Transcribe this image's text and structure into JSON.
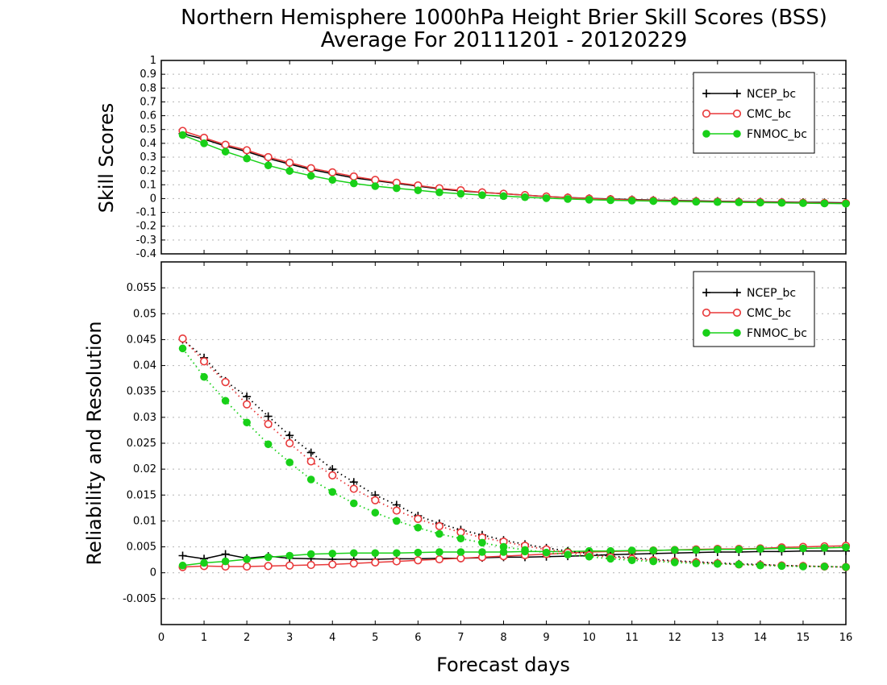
{
  "title_line1": "Northern Hemisphere 1000hPa Height Brier Skill Scores (BSS)",
  "title_line2": "Average For 20111201 - 20120229",
  "colors": {
    "NCEP_bc": "#000000",
    "CMC_bc": "#e8393a",
    "FNMOC_bc": "#18d018",
    "grid": "#b4b4b4"
  },
  "chart_data": [
    {
      "type": "line",
      "ylabel": "Skill Scores",
      "xlabel": "Forecast days",
      "xlim": [
        0,
        16
      ],
      "ylim": [
        -0.4,
        1
      ],
      "grid": true,
      "legend_position": "top-right",
      "x_ticks": [
        "0",
        "1",
        "2",
        "3",
        "4",
        "5",
        "6",
        "7",
        "8",
        "9",
        "10",
        "11",
        "12",
        "13",
        "14",
        "15",
        "16"
      ],
      "y_ticks": [
        "-0.4",
        "-0.3",
        "-0.2",
        "-0.1",
        "0",
        "0.1",
        "0.2",
        "0.3",
        "0.4",
        "0.5",
        "0.6",
        "0.7",
        "0.8",
        "0.9",
        "1"
      ],
      "x": [
        0.5,
        1,
        1.5,
        2,
        2.5,
        3,
        3.5,
        4,
        4.5,
        5,
        5.5,
        6,
        6.5,
        7,
        7.5,
        8,
        8.5,
        9,
        9.5,
        10,
        10.5,
        11,
        11.5,
        12,
        12.5,
        13,
        13.5,
        14,
        14.5,
        15,
        15.5,
        16
      ],
      "series": [
        {
          "name": "NCEP_bc",
          "marker": "plus",
          "line": "solid",
          "values": [
            0.47,
            0.43,
            0.38,
            0.34,
            0.29,
            0.25,
            0.21,
            0.18,
            0.15,
            0.13,
            0.11,
            0.09,
            0.07,
            0.055,
            0.045,
            0.035,
            0.025,
            0.015,
            0.008,
            0.002,
            -0.003,
            -0.007,
            -0.011,
            -0.014,
            -0.017,
            -0.019,
            -0.021,
            -0.023,
            -0.025,
            -0.027,
            -0.028,
            -0.03
          ]
        },
        {
          "name": "CMC_bc",
          "marker": "open-circle",
          "line": "solid",
          "values": [
            0.49,
            0.44,
            0.39,
            0.35,
            0.3,
            0.26,
            0.22,
            0.19,
            0.16,
            0.135,
            0.115,
            0.095,
            0.075,
            0.06,
            0.045,
            0.035,
            0.025,
            0.015,
            0.007,
            0.0,
            -0.005,
            -0.01,
            -0.014,
            -0.017,
            -0.02,
            -0.022,
            -0.024,
            -0.026,
            -0.028,
            -0.03,
            -0.032,
            -0.034
          ]
        },
        {
          "name": "FNMOC_bc",
          "marker": "filled-circle",
          "line": "solid",
          "values": [
            0.46,
            0.4,
            0.34,
            0.29,
            0.24,
            0.2,
            0.165,
            0.135,
            0.11,
            0.09,
            0.075,
            0.06,
            0.045,
            0.035,
            0.025,
            0.018,
            0.01,
            0.003,
            -0.003,
            -0.008,
            -0.012,
            -0.015,
            -0.018,
            -0.021,
            -0.023,
            -0.025,
            -0.027,
            -0.029,
            -0.031,
            -0.033,
            -0.035,
            -0.037
          ]
        }
      ]
    },
    {
      "type": "line",
      "ylabel": "Reliability and Resolution",
      "xlabel": "Forecast days",
      "xlim": [
        0,
        16
      ],
      "ylim": [
        -0.01,
        0.06
      ],
      "grid": true,
      "legend_position": "top-right",
      "x_ticks": [
        "0",
        "1",
        "2",
        "3",
        "4",
        "5",
        "6",
        "7",
        "8",
        "9",
        "10",
        "11",
        "12",
        "13",
        "14",
        "15",
        "16"
      ],
      "y_ticks": [
        "-0.005",
        "0",
        "0.005",
        "0.01",
        "0.015",
        "0.02",
        "0.025",
        "0.03",
        "0.035",
        "0.04",
        "0.045",
        "0.05",
        "0.055"
      ],
      "x": [
        0.5,
        1,
        1.5,
        2,
        2.5,
        3,
        3.5,
        4,
        4.5,
        5,
        5.5,
        6,
        6.5,
        7,
        7.5,
        8,
        8.5,
        9,
        9.5,
        10,
        10.5,
        11,
        11.5,
        12,
        12.5,
        13,
        13.5,
        14,
        14.5,
        15,
        15.5,
        16
      ],
      "series": [
        {
          "name": "NCEP_bc",
          "metric": "reliability",
          "marker": "plus",
          "line": "solid",
          "values": [
            0.0033,
            0.0027,
            0.0036,
            0.0028,
            0.0032,
            0.0028,
            0.0027,
            0.0026,
            0.0026,
            0.0026,
            0.0027,
            0.0027,
            0.0028,
            0.0028,
            0.0029,
            0.003,
            0.003,
            0.0031,
            0.0032,
            0.0033,
            0.0035,
            0.0036,
            0.0037,
            0.0038,
            0.0039,
            0.004,
            0.004,
            0.0041,
            0.0041,
            0.0042,
            0.0042,
            0.0042
          ]
        },
        {
          "name": "CMC_bc",
          "metric": "reliability",
          "marker": "open-circle",
          "line": "solid",
          "values": [
            0.0011,
            0.0013,
            0.0012,
            0.0012,
            0.0013,
            0.0014,
            0.0015,
            0.0016,
            0.0018,
            0.002,
            0.0022,
            0.0024,
            0.0026,
            0.0028,
            0.003,
            0.0032,
            0.0034,
            0.0036,
            0.0038,
            0.004,
            0.0041,
            0.0042,
            0.0043,
            0.0044,
            0.0045,
            0.0046,
            0.0046,
            0.0047,
            0.0049,
            0.005,
            0.0051,
            0.0052
          ]
        },
        {
          "name": "FNMOC_bc",
          "metric": "reliability",
          "marker": "filled-circle",
          "line": "solid",
          "values": [
            0.0014,
            0.0019,
            0.0022,
            0.0026,
            0.003,
            0.0033,
            0.0036,
            0.0037,
            0.0038,
            0.0038,
            0.0038,
            0.0039,
            0.004,
            0.004,
            0.004,
            0.004,
            0.0041,
            0.0041,
            0.0041,
            0.0042,
            0.0042,
            0.0043,
            0.0043,
            0.0044,
            0.0044,
            0.0045,
            0.0045,
            0.0046,
            0.0047,
            0.0047,
            0.0048,
            0.0049
          ]
        },
        {
          "name": "NCEP_bc",
          "metric": "resolution",
          "marker": "plus",
          "line": "dotted",
          "values": [
            0.045,
            0.0415,
            0.037,
            0.034,
            0.0302,
            0.0265,
            0.0232,
            0.02,
            0.0175,
            0.015,
            0.0131,
            0.011,
            0.0095,
            0.0083,
            0.0073,
            0.0063,
            0.0055,
            0.0048,
            0.0042,
            0.0037,
            0.0032,
            0.0029,
            0.0026,
            0.0023,
            0.0021,
            0.0019,
            0.0017,
            0.0016,
            0.0014,
            0.0013,
            0.0012,
            0.0011
          ]
        },
        {
          "name": "CMC_bc",
          "metric": "resolution",
          "marker": "open-circle",
          "line": "dotted",
          "values": [
            0.0452,
            0.0408,
            0.0368,
            0.0325,
            0.0287,
            0.025,
            0.0215,
            0.0188,
            0.0162,
            0.014,
            0.012,
            0.0104,
            0.009,
            0.0078,
            0.0068,
            0.006,
            0.0052,
            0.0045,
            0.0039,
            0.0034,
            0.003,
            0.0027,
            0.0024,
            0.0022,
            0.002,
            0.0018,
            0.0016,
            0.0015,
            0.0014,
            0.0013,
            0.0012,
            0.0011
          ]
        },
        {
          "name": "FNMOC_bc",
          "metric": "resolution",
          "marker": "filled-circle",
          "line": "dotted",
          "values": [
            0.0433,
            0.0378,
            0.0332,
            0.029,
            0.0248,
            0.0213,
            0.018,
            0.0156,
            0.0134,
            0.0116,
            0.01,
            0.0087,
            0.0075,
            0.0066,
            0.0058,
            0.005,
            0.0044,
            0.0039,
            0.0035,
            0.0031,
            0.0027,
            0.0024,
            0.0022,
            0.002,
            0.0018,
            0.0017,
            0.0016,
            0.0014,
            0.0013,
            0.0012,
            0.0012,
            0.0011
          ]
        }
      ]
    }
  ]
}
